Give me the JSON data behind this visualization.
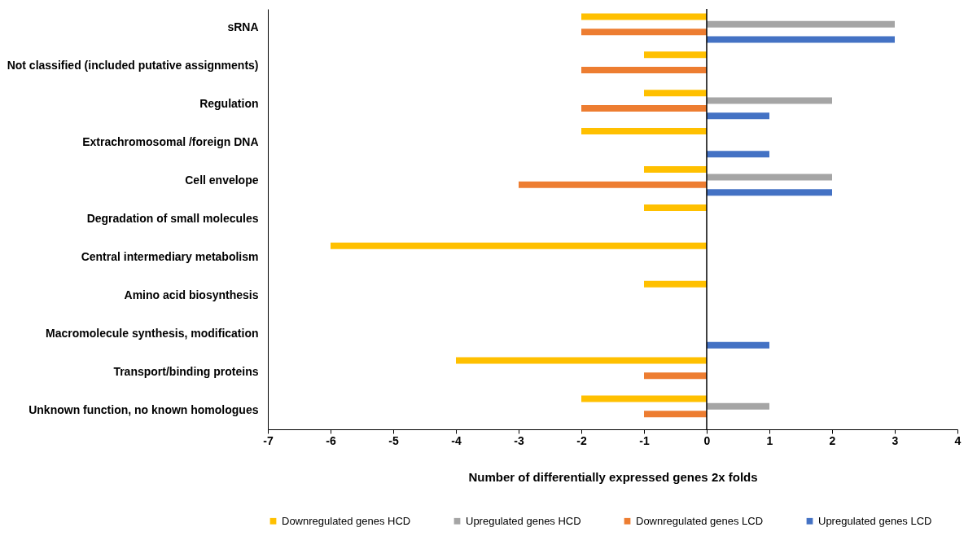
{
  "chart_data": {
    "type": "bar",
    "orientation": "horizontal",
    "xlabel": "Number of differentially expressed genes 2x folds",
    "categories": [
      "sRNA",
      "Not classified (included putative assignments)",
      "Regulation",
      "Extrachromosomal /foreign DNA",
      "Cell envelope",
      "Degradation of small molecules",
      "Central intermediary metabolism",
      "Amino acid biosynthesis",
      "Macromolecule synthesis, modification",
      "Transport/binding proteins",
      "Unknown function, no known homologues"
    ],
    "series": [
      {
        "name": "Downregulated genes HCD",
        "color": "#ffc000",
        "values": [
          -2,
          -1,
          -1,
          -2,
          -1,
          -1,
          -6,
          -1,
          0,
          -4,
          -2
        ]
      },
      {
        "name": "Upregulated genes HCD",
        "color": "#a5a5a5",
        "values": [
          3,
          0,
          2,
          0,
          2,
          0,
          0,
          0,
          0,
          0,
          1
        ]
      },
      {
        "name": "Downregulated genes LCD",
        "color": "#ed7d31",
        "values": [
          -2,
          -2,
          -2,
          0,
          -3,
          0,
          0,
          0,
          0,
          -1,
          -1
        ]
      },
      {
        "name": "Upregulated genes LCD",
        "color": "#4472c4",
        "values": [
          3,
          0,
          1,
          1,
          2,
          0,
          0,
          0,
          1,
          0,
          0
        ]
      }
    ],
    "xlim": [
      -7,
      4
    ],
    "xticks": [
      -7,
      -6,
      -5,
      -4,
      -3,
      -2,
      -1,
      0,
      1,
      2,
      3,
      4
    ],
    "ref_lines": [
      {
        "axis": "x",
        "value": 0,
        "color": "#000000"
      }
    ],
    "grid": false,
    "legend": "bottom"
  }
}
